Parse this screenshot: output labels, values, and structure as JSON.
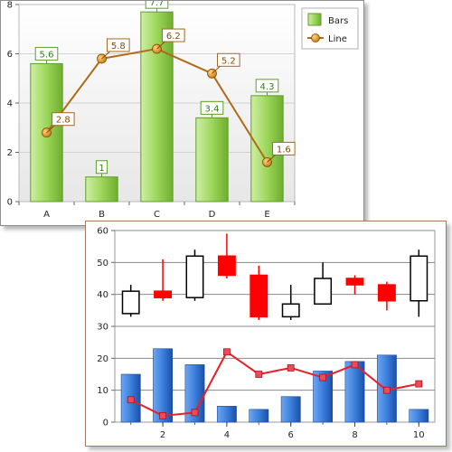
{
  "chart_data": [
    {
      "type": "bar",
      "categories": [
        "A",
        "B",
        "C",
        "D",
        "E"
      ],
      "series": [
        {
          "name": "Bars",
          "type": "bar",
          "values": [
            5.6,
            1,
            7.7,
            3.4,
            4.3
          ]
        },
        {
          "name": "Line",
          "type": "line",
          "values": [
            2.8,
            5.8,
            6.2,
            5.2,
            1.6
          ]
        }
      ],
      "ylim": [
        0,
        8
      ],
      "yticks": [
        0,
        2,
        4,
        6,
        8
      ],
      "grid": true,
      "legend": "top-right",
      "colors": {
        "bars": "#8cc84b",
        "line": "#b06a1a",
        "marker": "#d99a2b"
      }
    },
    {
      "type": "candlestick",
      "x": [
        1,
        2,
        3,
        4,
        5,
        6,
        7,
        8,
        9,
        10
      ],
      "xticks": [
        2,
        4,
        6,
        8,
        10
      ],
      "xlim": [
        0.5,
        10.5
      ],
      "ylim": [
        0,
        60
      ],
      "yticks": [
        0,
        10,
        20,
        30,
        40,
        50,
        60
      ],
      "grid": true,
      "candles": [
        {
          "x": 1,
          "open": 34,
          "high": 43,
          "low": 33,
          "close": 41
        },
        {
          "x": 2,
          "open": 41,
          "high": 51,
          "low": 38,
          "close": 39
        },
        {
          "x": 3,
          "open": 39,
          "high": 54,
          "low": 38,
          "close": 52
        },
        {
          "x": 4,
          "open": 52,
          "high": 59,
          "low": 45,
          "close": 46
        },
        {
          "x": 5,
          "open": 46,
          "high": 49,
          "low": 32,
          "close": 33
        },
        {
          "x": 6,
          "open": 33,
          "high": 43,
          "low": 32,
          "close": 37
        },
        {
          "x": 7,
          "open": 37,
          "high": 50,
          "low": 37,
          "close": 45
        },
        {
          "x": 8,
          "open": 45,
          "high": 46,
          "low": 40,
          "close": 43
        },
        {
          "x": 9,
          "open": 43,
          "high": 44,
          "low": 35,
          "close": 38
        },
        {
          "x": 10,
          "open": 38,
          "high": 54,
          "low": 33,
          "close": 52
        }
      ],
      "bars": [
        15,
        23,
        18,
        5,
        4,
        8,
        16,
        19,
        21,
        4
      ],
      "line": [
        7,
        2,
        3,
        22,
        15,
        17,
        14,
        18,
        10,
        12
      ],
      "colors": {
        "up": "#000000",
        "down": "#ff0000",
        "bars": "#2e6fd4",
        "line": "#e8202a"
      }
    }
  ]
}
